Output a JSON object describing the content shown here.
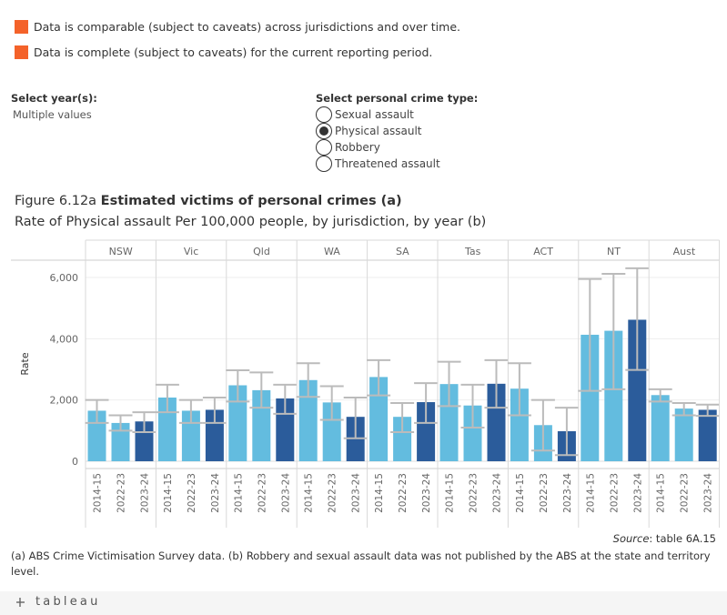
{
  "legend": {
    "items": [
      {
        "text": "Data is comparable (subject to caveats) across jurisdictions and over time.",
        "color": "#F4622A"
      },
      {
        "text": "Data is complete (subject to caveats) for the current reporting period.",
        "color": "#F4622A"
      }
    ]
  },
  "filters": {
    "year": {
      "title": "Select year(s):",
      "value": "Multiple values"
    },
    "crime_type": {
      "title": "Select personal crime type:",
      "options": [
        {
          "label": "Sexual assault",
          "selected": false
        },
        {
          "label": "Physical assault",
          "selected": true
        },
        {
          "label": "Robbery",
          "selected": false
        },
        {
          "label": "Threatened assault",
          "selected": false
        }
      ]
    }
  },
  "figure": {
    "number": "Figure 6.12a",
    "title": "Estimated victims of personal crimes (a)",
    "subtitle": "Rate of Physical assault Per 100,000 people, by jurisdiction, by year (b)"
  },
  "chart_data": {
    "type": "bar",
    "ylabel": "Rate",
    "ylim": [
      0,
      6600
    ],
    "yticks": [
      {
        "value": 0,
        "label": "0"
      },
      {
        "value": 2000,
        "label": "2,000"
      },
      {
        "value": 4000,
        "label": "4,000"
      },
      {
        "value": 6000,
        "label": "6,000"
      }
    ],
    "grid": true,
    "years": [
      "2014-15",
      "2022-23",
      "2023-24"
    ],
    "colors": {
      "2014-15": "#63BCDF",
      "2022-23": "#63BCDF",
      "2023-24": "#2B5C9B"
    },
    "panels": [
      {
        "name": "NSW",
        "values": [
          1650,
          1250,
          1300
        ],
        "lower": [
          1250,
          1000,
          950
        ],
        "upper": [
          2000,
          1500,
          1600
        ]
      },
      {
        "name": "Vic",
        "values": [
          2080,
          1650,
          1680
        ],
        "lower": [
          1600,
          1250,
          1250
        ],
        "upper": [
          2500,
          2000,
          2080
        ]
      },
      {
        "name": "Qld",
        "values": [
          2480,
          2320,
          2050
        ],
        "lower": [
          1950,
          1750,
          1550
        ],
        "upper": [
          2970,
          2900,
          2500
        ]
      },
      {
        "name": "WA",
        "values": [
          2650,
          1920,
          1450
        ],
        "lower": [
          2100,
          1350,
          750
        ],
        "upper": [
          3200,
          2450,
          2080
        ]
      },
      {
        "name": "SA",
        "values": [
          2750,
          1450,
          1930
        ],
        "lower": [
          2150,
          950,
          1250
        ],
        "upper": [
          3300,
          1900,
          2550
        ]
      },
      {
        "name": "Tas",
        "values": [
          2520,
          1820,
          2530
        ],
        "lower": [
          1800,
          1100,
          1750
        ],
        "upper": [
          3250,
          2500,
          3300
        ]
      },
      {
        "name": "ACT",
        "values": [
          2370,
          1180,
          980
        ],
        "lower": [
          1500,
          350,
          200
        ],
        "upper": [
          3200,
          2000,
          1750
        ]
      },
      {
        "name": "NT",
        "values": [
          4130,
          4260,
          4620
        ],
        "lower": [
          2300,
          2350,
          2980
        ],
        "upper": [
          5950,
          6120,
          6300
        ]
      },
      {
        "name": "Aust",
        "values": [
          2160,
          1720,
          1680
        ],
        "lower": [
          1950,
          1500,
          1480
        ],
        "upper": [
          2350,
          1900,
          1850
        ]
      }
    ]
  },
  "source": {
    "label": "Source",
    "text": ": table 6A.15"
  },
  "footnote": "(a) ABS Crime Victimisation Survey data. (b) Robbery and sexual assault data was not published by the ABS at the state and territory level.",
  "footer": {
    "brand": "tableau"
  }
}
